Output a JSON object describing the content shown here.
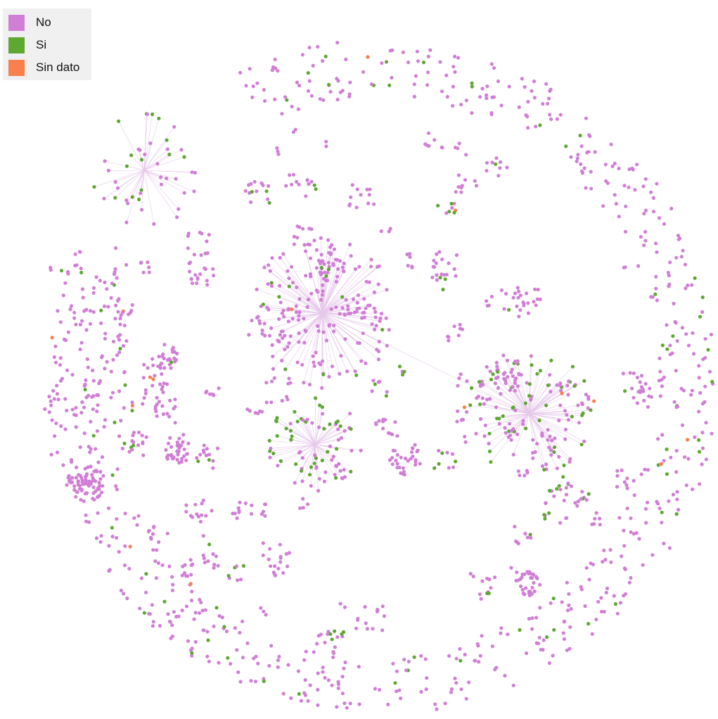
{
  "legend": {
    "entries": [
      {
        "label": "No",
        "color": "#d17fd6"
      },
      {
        "label": "Si",
        "color": "#5ea832"
      },
      {
        "label": "Sin dato",
        "color": "#f97f4f"
      }
    ]
  }
}
